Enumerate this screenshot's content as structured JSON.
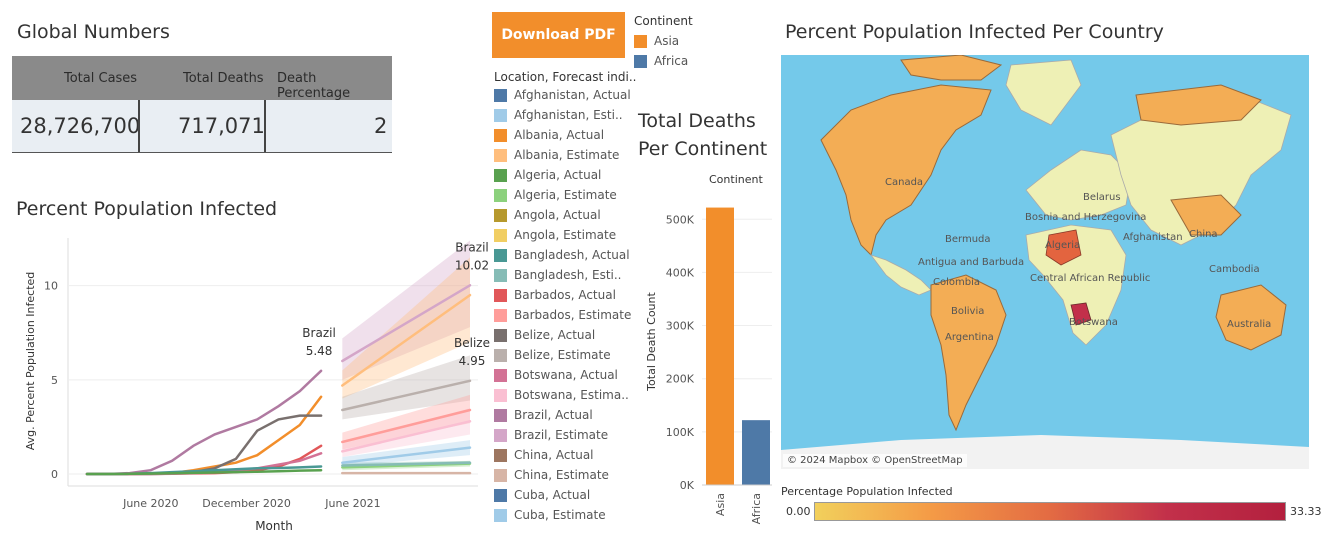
{
  "global": {
    "title": "Global Numbers",
    "headers": [
      "Total Cases",
      "Total Deaths",
      "Death Percentage"
    ],
    "values": [
      "28,726,700",
      "717,071",
      "2"
    ]
  },
  "download_button": "Download PDF",
  "continent_legend": {
    "title": "Continent",
    "items": [
      {
        "label": "Asia",
        "color": "#f28e2b"
      },
      {
        "label": "Africa",
        "color": "#4e79a7"
      }
    ]
  },
  "location_legend": {
    "title": "Location, Forecast indi..",
    "items": [
      {
        "label": "Afghanistan, Actual",
        "color": "#4e79a7"
      },
      {
        "label": "Afghanistan, Esti..",
        "color": "#a0cbe8"
      },
      {
        "label": "Albania, Actual",
        "color": "#f28e2b"
      },
      {
        "label": "Albania, Estimate",
        "color": "#ffbe7d"
      },
      {
        "label": "Algeria, Actual",
        "color": "#59a14f"
      },
      {
        "label": "Algeria, Estimate",
        "color": "#8cd17d"
      },
      {
        "label": "Angola, Actual",
        "color": "#b6992d"
      },
      {
        "label": "Angola, Estimate",
        "color": "#f1ce63"
      },
      {
        "label": "Bangladesh, Actual",
        "color": "#499894"
      },
      {
        "label": "Bangladesh, Esti..",
        "color": "#86bcb6"
      },
      {
        "label": "Barbados, Actual",
        "color": "#e15759"
      },
      {
        "label": "Barbados, Estimate",
        "color": "#ff9d9a"
      },
      {
        "label": "Belize, Actual",
        "color": "#79706e"
      },
      {
        "label": "Belize, Estimate",
        "color": "#bab0ac"
      },
      {
        "label": "Botswana, Actual",
        "color": "#d37295"
      },
      {
        "label": "Botswana, Estima..",
        "color": "#fabfd2"
      },
      {
        "label": "Brazil, Actual",
        "color": "#b07aa1"
      },
      {
        "label": "Brazil, Estimate",
        "color": "#d4a6c8"
      },
      {
        "label": "China, Actual",
        "color": "#9d7660"
      },
      {
        "label": "China, Estimate",
        "color": "#d7b5a6"
      },
      {
        "label": "Cuba, Actual",
        "color": "#4e79a7"
      },
      {
        "label": "Cuba, Estimate",
        "color": "#a0cbe8"
      }
    ]
  },
  "chart_data": [
    {
      "type": "line",
      "title": "Percent Population Infected",
      "xlabel": "Month",
      "ylabel": "Avg. Percent Population Infected",
      "x_ticks": [
        "June 2020",
        "December 2020",
        "June 2021"
      ],
      "y_ticks": [
        0,
        5,
        10
      ],
      "ylim": [
        0,
        12
      ],
      "x_months": [
        0,
        18
      ],
      "annotations": [
        {
          "name": "Brazil",
          "value": "5.48"
        },
        {
          "name": "Brazil",
          "value": "10.02"
        },
        {
          "name": "Belize",
          "value": "4.95"
        }
      ],
      "series": [
        {
          "name": "Brazil, Actual",
          "color": "#b07aa1",
          "x": [
            0,
            1,
            2,
            3,
            4,
            5,
            6,
            7,
            8,
            9,
            10,
            11
          ],
          "y": [
            0,
            0,
            0.05,
            0.2,
            0.7,
            1.5,
            2.1,
            2.5,
            2.9,
            3.6,
            4.4,
            5.48
          ]
        },
        {
          "name": "Albania, Actual",
          "color": "#f28e2b",
          "x": [
            0,
            1,
            2,
            3,
            4,
            5,
            6,
            7,
            8,
            9,
            10,
            11
          ],
          "y": [
            0,
            0,
            0,
            0.01,
            0.05,
            0.2,
            0.4,
            0.6,
            1.0,
            1.8,
            2.6,
            4.1
          ]
        },
        {
          "name": "Belize, Actual",
          "color": "#79706e",
          "x": [
            0,
            1,
            2,
            3,
            4,
            5,
            6,
            7,
            8,
            9,
            10,
            11
          ],
          "y": [
            0,
            0,
            0,
            0,
            0.02,
            0.1,
            0.3,
            0.8,
            2.3,
            2.9,
            3.1,
            3.1
          ]
        },
        {
          "name": "Barbados, Actual",
          "color": "#e15759",
          "x": [
            0,
            1,
            2,
            3,
            4,
            5,
            6,
            7,
            8,
            9,
            10,
            11
          ],
          "y": [
            0,
            0,
            0.01,
            0.02,
            0.02,
            0.03,
            0.05,
            0.1,
            0.2,
            0.4,
            0.8,
            1.5
          ]
        },
        {
          "name": "Botswana, Actual",
          "color": "#d37295",
          "x": [
            0,
            1,
            2,
            3,
            4,
            5,
            6,
            7,
            8,
            9,
            10,
            11
          ],
          "y": [
            0,
            0,
            0,
            0,
            0.01,
            0.05,
            0.1,
            0.2,
            0.3,
            0.5,
            0.7,
            1.1
          ]
        },
        {
          "name": "Bangladesh, Actual",
          "color": "#499894",
          "x": [
            0,
            1,
            2,
            3,
            4,
            5,
            6,
            7,
            8,
            9,
            10,
            11
          ],
          "y": [
            0,
            0,
            0.01,
            0.05,
            0.1,
            0.15,
            0.2,
            0.25,
            0.3,
            0.32,
            0.35,
            0.4
          ]
        },
        {
          "name": "Algeria, Actual",
          "color": "#59a14f",
          "x": [
            0,
            1,
            2,
            3,
            4,
            5,
            6,
            7,
            8,
            9,
            10,
            11
          ],
          "y": [
            0,
            0,
            0.01,
            0.02,
            0.04,
            0.06,
            0.08,
            0.1,
            0.12,
            0.15,
            0.18,
            0.2
          ]
        },
        {
          "name": "Brazil, Estimate",
          "color": "#d4a6c8",
          "x": [
            12,
            18
          ],
          "y": [
            6.0,
            10.02
          ],
          "band": [
            [
              5.0,
              7.2
            ],
            [
              7.8,
              12.4
            ]
          ]
        },
        {
          "name": "Albania, Estimate",
          "color": "#ffbe7d",
          "x": [
            12,
            18
          ],
          "y": [
            4.7,
            9.5
          ],
          "band": [
            [
              4.0,
              5.5
            ],
            [
              7.0,
              11.5
            ]
          ]
        },
        {
          "name": "Belize, Estimate",
          "color": "#bab0ac",
          "x": [
            12,
            18
          ],
          "y": [
            3.4,
            4.95
          ],
          "band": [
            [
              2.9,
              4.1
            ],
            [
              3.9,
              6.3
            ]
          ]
        },
        {
          "name": "Barbados, Estimate",
          "color": "#ff9d9a",
          "x": [
            12,
            18
          ],
          "y": [
            1.7,
            3.4
          ],
          "band": [
            [
              1.3,
              2.2
            ],
            [
              2.7,
              4.2
            ]
          ]
        },
        {
          "name": "Botswana, Estimate",
          "color": "#fabfd2",
          "x": [
            12,
            18
          ],
          "y": [
            1.2,
            2.8
          ],
          "band": [
            [
              0.9,
              1.6
            ],
            [
              2.1,
              3.5
            ]
          ]
        },
        {
          "name": "Cuba, Estimate",
          "color": "#a0cbe8",
          "x": [
            12,
            18
          ],
          "y": [
            0.6,
            1.4
          ],
          "band": [
            [
              0.4,
              0.9
            ],
            [
              1.0,
              1.8
            ]
          ]
        },
        {
          "name": "Algeria, Estimate",
          "color": "#8cd17d",
          "x": [
            12,
            18
          ],
          "y": [
            0.35,
            0.55
          ],
          "band": [
            [
              0.2,
              0.5
            ],
            [
              0.4,
              0.7
            ]
          ]
        },
        {
          "name": "Bangladesh, Estimate",
          "color": "#86bcb6",
          "x": [
            12,
            18
          ],
          "y": [
            0.45,
            0.6
          ],
          "band": [
            [
              0.3,
              0.6
            ],
            [
              0.5,
              0.7
            ]
          ]
        },
        {
          "name": "China, Estimate",
          "color": "#d7b5a6",
          "x": [
            12,
            18
          ],
          "y": [
            0.05,
            0.05
          ],
          "band": [
            [
              0.0,
              0.1
            ],
            [
              0.0,
              0.1
            ]
          ]
        }
      ]
    },
    {
      "type": "bar",
      "title": "Total Deaths Per Continent",
      "header": "Continent",
      "categories": [
        "Asia",
        "Africa"
      ],
      "values": [
        522000,
        122000
      ],
      "colors": [
        "#f28e2b",
        "#4e79a7"
      ],
      "ylabel": "Total Death Count",
      "y_ticks": [
        "0K",
        "100K",
        "200K",
        "300K",
        "400K",
        "500K"
      ],
      "ylim": [
        0,
        540000
      ]
    }
  ],
  "map": {
    "title": "Percent Population Infected Per Country",
    "attribution": "© 2024 Mapbox © OpenStreetMap",
    "labels": [
      "Canada",
      "Belarus",
      "Bosnia and Herzegovina",
      "Bermuda",
      "Algeria",
      "Afghanistan",
      "China",
      "Antigua and Barbuda",
      "Central African Republic",
      "Cambodia",
      "Colombia",
      "Bolivia",
      "Botswana",
      "Argentina",
      "Australia"
    ],
    "legend_title": "Percentage Population Infected",
    "legend_min": "0.00",
    "legend_max": "33.33"
  }
}
